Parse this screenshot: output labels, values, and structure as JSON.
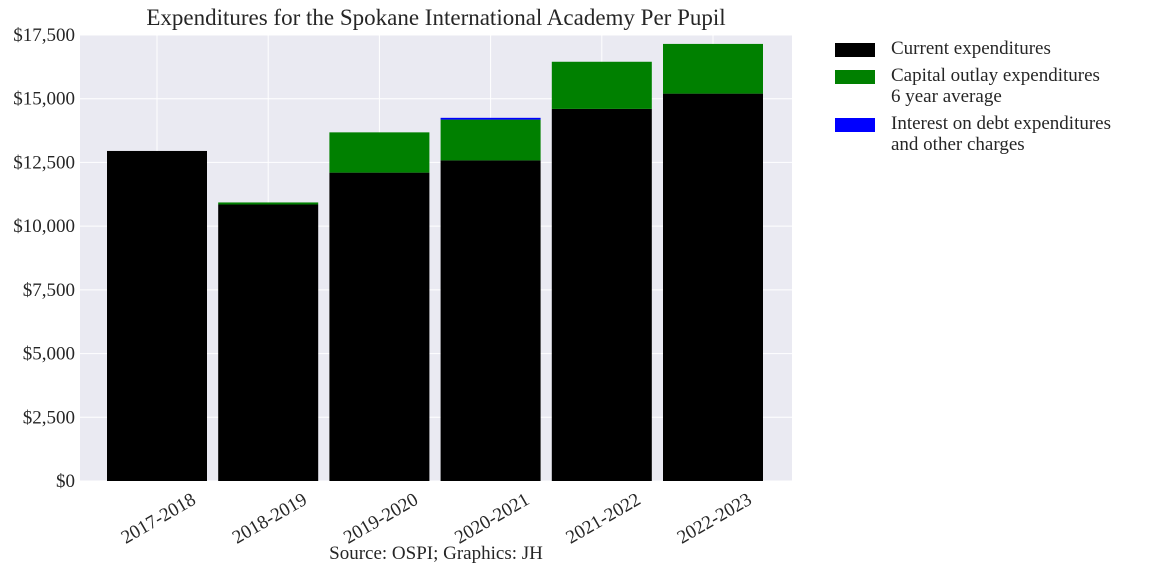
{
  "chart_data": {
    "type": "bar",
    "stacked": true,
    "title": "Expenditures for the Spokane International Academy Per Pupil",
    "xlabel": "Source: OSPI; Graphics: JH",
    "ylabel": "",
    "categories": [
      "2017-2018",
      "2018-2019",
      "2019-2020",
      "2020-2021",
      "2021-2022",
      "2022-2023"
    ],
    "series": [
      {
        "name": "Current expenditures",
        "color": "#000000",
        "values": [
          12950,
          10850,
          12100,
          12580,
          14600,
          15200
        ]
      },
      {
        "name": "Capital outlay expenditures\n6 year average",
        "color": "#008000",
        "values": [
          0,
          80,
          1580,
          1600,
          1850,
          1950
        ]
      },
      {
        "name": "Interest on debt expenditures\nand other charges",
        "color": "#0000ff",
        "values": [
          0,
          0,
          0,
          70,
          0,
          0
        ]
      }
    ],
    "ylim": [
      0,
      17500
    ],
    "yticks": [
      0,
      2500,
      5000,
      7500,
      10000,
      12500,
      15000,
      17500
    ],
    "ytick_labels": [
      "$0",
      "$2,500",
      "$5,000",
      "$7,500",
      "$10,000",
      "$12,500",
      "$15,000",
      "$17,500"
    ],
    "grid": true,
    "legend_position": "outside-right-top",
    "background_color": "#eaeaf2"
  }
}
